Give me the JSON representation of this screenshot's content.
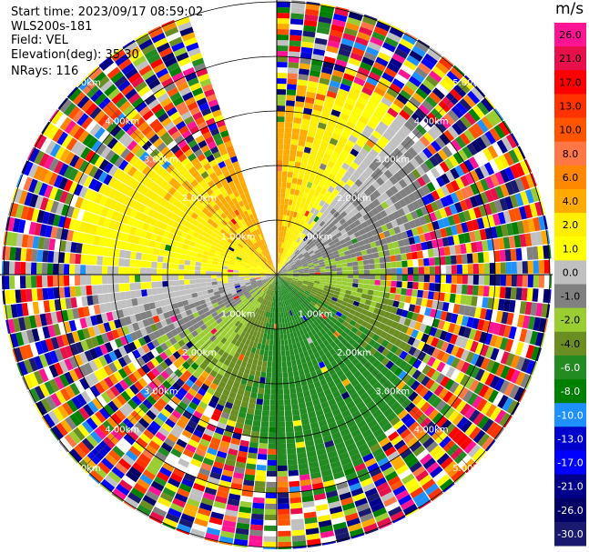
{
  "header": {
    "start_time": "Start time: 2023/09/17 08:59:02",
    "instrument": "WLS200s-181",
    "field": "Field: VEL",
    "elevation": "Elevation(deg): 35.30",
    "nrays": "NRays: 116"
  },
  "chart_data": {
    "type": "heatmap",
    "projection": "polar (PPI scan)",
    "range_rings": [
      "1.00km",
      "2.00km",
      "3.00km",
      "4.00km",
      "5.00km"
    ],
    "missing_sector_deg": [
      -20,
      0
    ],
    "colorbar": {
      "unit": "m/s",
      "ticks": [
        "26.0",
        "21.0",
        "17.0",
        "13.0",
        "10.0",
        "8.0",
        "6.0",
        "4.0",
        "2.0",
        "1.0",
        "0.0",
        "-1.0",
        "-2.0",
        "-4.0",
        "-6.0",
        "-8.0",
        "-10.0",
        "-13.0",
        "-17.0",
        "-21.0",
        "-26.0",
        "-30.0"
      ],
      "colors": [
        "#ff1493",
        "#e8104a",
        "#ff0000",
        "#ff3300",
        "#ff5500",
        "#ff7744",
        "#ff8800",
        "#ffaa00",
        "#ffee00",
        "#ffff00",
        "#c0c0c0",
        "#808080",
        "#9acd32",
        "#6b8e23",
        "#228b22",
        "#008000",
        "#1e90ff",
        "#0000cd",
        "#0000ff",
        "#00008b",
        "#000066",
        "#191970"
      ]
    },
    "near_field": {
      "north": 4.0,
      "north_east": -0.5,
      "east": -1.5,
      "south_east": -6.0,
      "south": -6.0,
      "south_west": -2.0,
      "west": 0.5,
      "north_west": 3.0
    }
  }
}
